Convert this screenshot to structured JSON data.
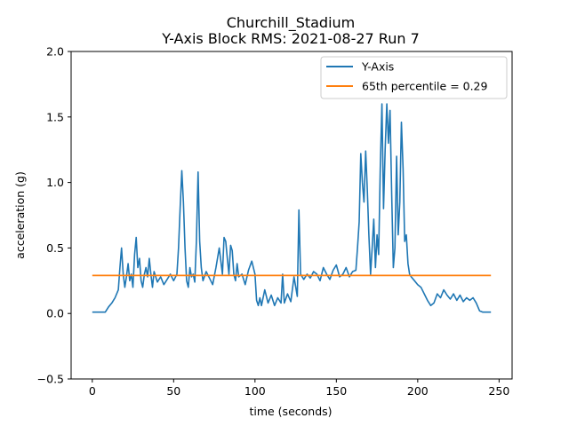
{
  "chart_data": {
    "type": "line",
    "title": "Churchill_Stadium",
    "subtitle": "Y-Axis Block RMS: 2021-08-27 Run 7",
    "xlabel": "time (seconds)",
    "ylabel": "acceleration (g)",
    "xlim": [
      -13,
      258
    ],
    "ylim": [
      -0.5,
      2.0
    ],
    "x_ticks": [
      0,
      50,
      100,
      150,
      200,
      250
    ],
    "x_tick_labels": [
      "0",
      "50",
      "100",
      "150",
      "200",
      "250"
    ],
    "y_ticks": [
      -0.5,
      0.0,
      0.5,
      1.0,
      1.5,
      2.0
    ],
    "y_tick_labels": [
      "−0.5",
      "0.0",
      "0.5",
      "1.0",
      "1.5",
      "2.0"
    ],
    "grid": false,
    "legend_position": "top-right",
    "series": [
      {
        "name": "Y-Axis",
        "color": "#1f77b4",
        "x": [
          0,
          4,
          8,
          10,
          12,
          14,
          16,
          17,
          18,
          19,
          20,
          21,
          22,
          23,
          24,
          25,
          26,
          27,
          28,
          29,
          30,
          31,
          32,
          33,
          34,
          35,
          36,
          37,
          38,
          40,
          42,
          44,
          46,
          48,
          50,
          52,
          53,
          54,
          55,
          56,
          57,
          58,
          59,
          60,
          61,
          62,
          63,
          64,
          65,
          66,
          67,
          68,
          70,
          72,
          74,
          76,
          78,
          80,
          81,
          82,
          83,
          84,
          85,
          86,
          87,
          88,
          89,
          90,
          92,
          94,
          96,
          98,
          100,
          101,
          102,
          103,
          104,
          106,
          108,
          110,
          112,
          114,
          116,
          117,
          118,
          120,
          122,
          124,
          126,
          127,
          128,
          130,
          132,
          134,
          136,
          138,
          140,
          142,
          144,
          146,
          148,
          150,
          152,
          154,
          156,
          158,
          160,
          162,
          163,
          164,
          165,
          166,
          167,
          168,
          169,
          170,
          171,
          172,
          173,
          174,
          175,
          176,
          177,
          178,
          179,
          180,
          181,
          182,
          183,
          184,
          185,
          186,
          187,
          188,
          189,
          190,
          191,
          192,
          193,
          194,
          195,
          196,
          198,
          200,
          202,
          204,
          206,
          208,
          210,
          212,
          214,
          216,
          218,
          220,
          222,
          224,
          226,
          228,
          230,
          232,
          234,
          236,
          238,
          240,
          242,
          245
        ],
        "values": [
          0.01,
          0.01,
          0.01,
          0.05,
          0.08,
          0.12,
          0.18,
          0.35,
          0.5,
          0.3,
          0.2,
          0.28,
          0.38,
          0.25,
          0.3,
          0.2,
          0.45,
          0.58,
          0.35,
          0.42,
          0.25,
          0.2,
          0.3,
          0.35,
          0.28,
          0.42,
          0.3,
          0.2,
          0.32,
          0.24,
          0.28,
          0.22,
          0.26,
          0.3,
          0.25,
          0.3,
          0.5,
          0.8,
          1.09,
          0.85,
          0.5,
          0.25,
          0.2,
          0.35,
          0.28,
          0.3,
          0.24,
          0.55,
          1.08,
          0.55,
          0.35,
          0.25,
          0.32,
          0.27,
          0.22,
          0.35,
          0.5,
          0.3,
          0.58,
          0.55,
          0.42,
          0.3,
          0.52,
          0.48,
          0.3,
          0.25,
          0.38,
          0.28,
          0.3,
          0.22,
          0.33,
          0.4,
          0.3,
          0.1,
          0.06,
          0.12,
          0.06,
          0.18,
          0.08,
          0.14,
          0.06,
          0.12,
          0.08,
          0.3,
          0.08,
          0.15,
          0.09,
          0.28,
          0.13,
          0.79,
          0.3,
          0.26,
          0.3,
          0.27,
          0.32,
          0.3,
          0.25,
          0.35,
          0.3,
          0.26,
          0.33,
          0.37,
          0.28,
          0.3,
          0.35,
          0.28,
          0.32,
          0.33,
          0.5,
          0.7,
          1.22,
          1.0,
          0.85,
          1.24,
          0.95,
          0.6,
          0.3,
          0.5,
          0.72,
          0.35,
          0.6,
          0.45,
          1.1,
          1.6,
          0.8,
          1.25,
          1.6,
          1.3,
          1.55,
          0.9,
          0.35,
          0.5,
          1.2,
          0.6,
          0.85,
          1.46,
          1.1,
          0.55,
          0.6,
          0.38,
          0.3,
          0.28,
          0.25,
          0.22,
          0.2,
          0.15,
          0.1,
          0.06,
          0.08,
          0.15,
          0.12,
          0.18,
          0.14,
          0.11,
          0.15,
          0.1,
          0.14,
          0.09,
          0.12,
          0.1,
          0.12,
          0.08,
          0.02,
          0.01,
          0.01,
          0.01
        ]
      },
      {
        "name": "65th percentile = 0.29",
        "color": "#ff7f0e",
        "x": [
          0,
          245
        ],
        "values": [
          0.29,
          0.29
        ]
      }
    ]
  }
}
